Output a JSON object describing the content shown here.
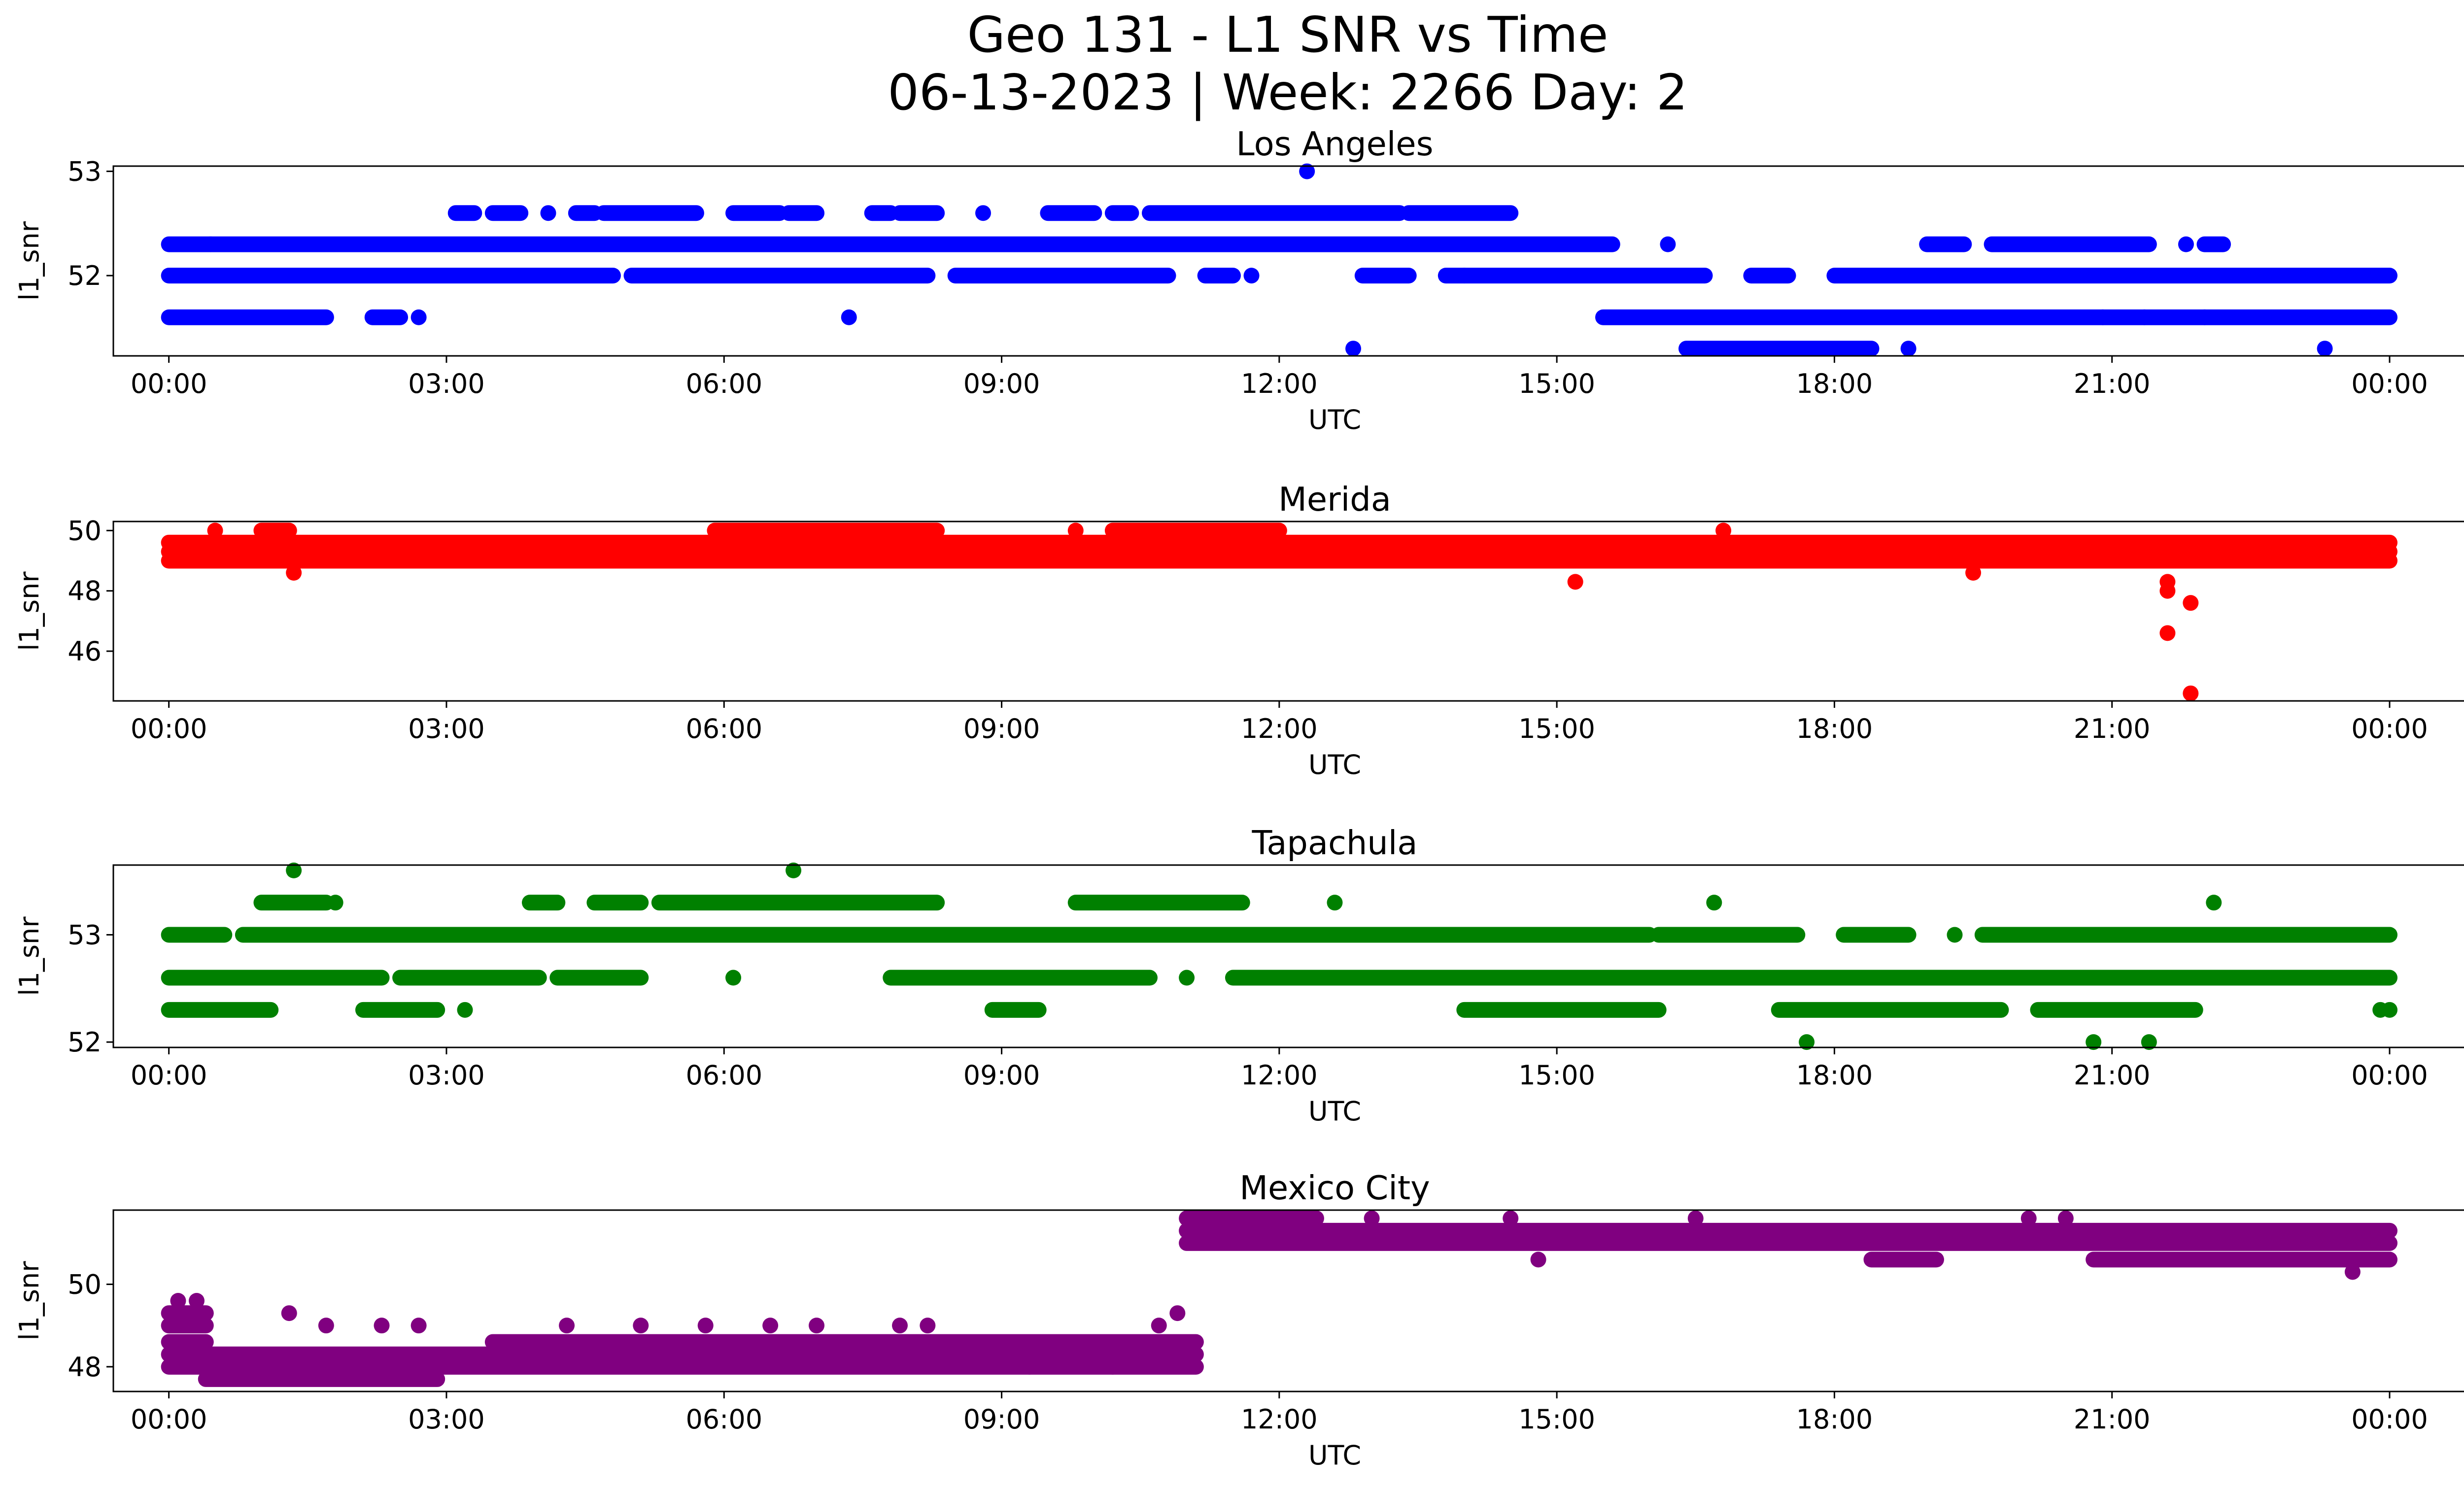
{
  "chart_data": {
    "type": "scatter",
    "title_line1": "Geo 131 - L1 SNR vs Time",
    "title_line2": "06-13-2023 | Week: 2266 Day: 2",
    "xlabel": "UTC",
    "ylabel": "l1_snr",
    "x_ticks": [
      "00:00",
      "03:00",
      "06:00",
      "09:00",
      "12:00",
      "15:00",
      "18:00",
      "21:00",
      "00:00"
    ],
    "x_tick_hours": [
      0,
      3,
      6,
      9,
      12,
      15,
      18,
      21,
      24
    ],
    "xlim": [
      -0.6,
      25.8
    ],
    "grid": false,
    "panels": [
      {
        "subtitle": "Los Angeles",
        "color": "#0000ff",
        "ylim": [
          51.23,
          53.05
        ],
        "y_ticks": [
          52,
          53
        ],
        "levels": [
          51.3,
          51.6,
          52.0,
          52.3,
          52.6,
          53.0
        ],
        "segments": [
          {
            "from": 0,
            "to": 15.6,
            "level": 52.3
          },
          {
            "from": 0,
            "to": 4.8,
            "level": 52.0
          },
          {
            "from": 5.0,
            "to": 8.2,
            "level": 52.0
          },
          {
            "from": 8.5,
            "to": 10.8,
            "level": 52.0
          },
          {
            "from": 11.2,
            "to": 11.5,
            "level": 52.0
          },
          {
            "from": 12.9,
            "to": 13.4,
            "level": 52.0
          },
          {
            "from": 13.8,
            "to": 16.6,
            "level": 52.0
          },
          {
            "from": 17.1,
            "to": 17.5,
            "level": 52.0
          },
          {
            "from": 18.0,
            "to": 24.0,
            "level": 52.0
          },
          {
            "from": 0,
            "to": 1.7,
            "level": 51.6
          },
          {
            "from": 2.2,
            "to": 2.5,
            "level": 51.6
          },
          {
            "from": 15.5,
            "to": 24.0,
            "level": 51.6
          },
          {
            "from": 16.4,
            "to": 18.4,
            "level": 51.3
          },
          {
            "from": 3.1,
            "to": 3.3,
            "level": 52.6
          },
          {
            "from": 3.5,
            "to": 3.8,
            "level": 52.6
          },
          {
            "from": 4.4,
            "to": 4.6,
            "level": 52.6
          },
          {
            "from": 4.7,
            "to": 5.7,
            "level": 52.6
          },
          {
            "from": 6.1,
            "to": 6.6,
            "level": 52.6
          },
          {
            "from": 6.7,
            "to": 7.0,
            "level": 52.6
          },
          {
            "from": 7.6,
            "to": 7.8,
            "level": 52.6
          },
          {
            "from": 7.9,
            "to": 8.3,
            "level": 52.6
          },
          {
            "from": 9.5,
            "to": 10.0,
            "level": 52.6
          },
          {
            "from": 10.2,
            "to": 10.4,
            "level": 52.6
          },
          {
            "from": 10.6,
            "to": 13.3,
            "level": 52.6
          },
          {
            "from": 13.4,
            "to": 14.5,
            "level": 52.6
          },
          {
            "from": 19.0,
            "to": 19.4,
            "level": 52.3
          },
          {
            "from": 19.7,
            "to": 21.4,
            "level": 52.3
          },
          {
            "from": 22.0,
            "to": 22.2,
            "level": 52.3
          }
        ],
        "points": [
          {
            "x": 0.45,
            "y": 52.3
          },
          {
            "x": 4.1,
            "y": 52.6
          },
          {
            "x": 8.8,
            "y": 52.6
          },
          {
            "x": 12.3,
            "y": 53.0
          },
          {
            "x": 12.8,
            "y": 51.3
          },
          {
            "x": 7.35,
            "y": 51.6
          },
          {
            "x": 2.7,
            "y": 51.6
          },
          {
            "x": 16.2,
            "y": 52.3
          },
          {
            "x": 21.35,
            "y": 51.6
          },
          {
            "x": 20.9,
            "y": 51.6
          },
          {
            "x": 22.0,
            "y": 51.6
          },
          {
            "x": 23.3,
            "y": 51.3
          },
          {
            "x": 21.8,
            "y": 52.3
          },
          {
            "x": 11.7,
            "y": 52.0
          },
          {
            "x": 14.0,
            "y": 52.0
          },
          {
            "x": 18.8,
            "y": 51.3
          }
        ]
      },
      {
        "subtitle": "Merida",
        "color": "#ff0000",
        "ylim": [
          44.35,
          50.3
        ],
        "y_ticks": [
          46,
          48,
          50
        ],
        "levels": [
          49.0,
          49.3,
          49.6,
          50.0
        ],
        "segments": [
          {
            "from": 0,
            "to": 24.0,
            "level": 49.3
          },
          {
            "from": 0,
            "to": 24.0,
            "level": 49.6
          },
          {
            "from": 0,
            "to": 24.0,
            "level": 49.0
          },
          {
            "from": 5.9,
            "to": 8.3,
            "level": 50.0
          },
          {
            "from": 10.2,
            "to": 12.0,
            "level": 50.0
          },
          {
            "from": 1.0,
            "to": 1.3,
            "level": 50.0
          }
        ],
        "points": [
          {
            "x": 1.35,
            "y": 48.6
          },
          {
            "x": 15.2,
            "y": 48.3
          },
          {
            "x": 19.5,
            "y": 48.6
          },
          {
            "x": 21.6,
            "y": 48.3
          },
          {
            "x": 21.6,
            "y": 48.0
          },
          {
            "x": 21.6,
            "y": 46.6
          },
          {
            "x": 21.85,
            "y": 47.6
          },
          {
            "x": 21.85,
            "y": 44.6
          },
          {
            "x": 0.5,
            "y": 50.0
          },
          {
            "x": 9.8,
            "y": 50.0
          },
          {
            "x": 12.9,
            "y": 49.0
          },
          {
            "x": 16.8,
            "y": 50.0
          }
        ]
      },
      {
        "subtitle": "Tapachula",
        "color": "#008000",
        "ylim": [
          51.95,
          53.65
        ],
        "y_ticks": [
          52,
          53
        ],
        "levels": [
          52.0,
          52.3,
          52.6,
          53.0,
          53.3,
          53.6
        ],
        "segments": [
          {
            "from": 0,
            "to": 0.6,
            "level": 53.0
          },
          {
            "from": 0.8,
            "to": 16.0,
            "level": 53.0
          },
          {
            "from": 16.1,
            "to": 17.6,
            "level": 53.0
          },
          {
            "from": 18.1,
            "to": 18.8,
            "level": 53.0
          },
          {
            "from": 19.6,
            "to": 24.0,
            "level": 53.0
          },
          {
            "from": 0,
            "to": 2.3,
            "level": 52.6
          },
          {
            "from": 2.5,
            "to": 4.0,
            "level": 52.6
          },
          {
            "from": 4.2,
            "to": 5.1,
            "level": 52.6
          },
          {
            "from": 7.8,
            "to": 10.6,
            "level": 52.6
          },
          {
            "from": 11.5,
            "to": 24.0,
            "level": 52.6
          },
          {
            "from": 0,
            "to": 1.1,
            "level": 52.3
          },
          {
            "from": 2.1,
            "to": 2.9,
            "level": 52.3
          },
          {
            "from": 8.9,
            "to": 9.4,
            "level": 52.3
          },
          {
            "from": 14.0,
            "to": 16.1,
            "level": 52.3
          },
          {
            "from": 17.4,
            "to": 19.8,
            "level": 52.3
          },
          {
            "from": 20.2,
            "to": 21.9,
            "level": 52.3
          },
          {
            "from": 1.0,
            "to": 1.7,
            "level": 53.3
          },
          {
            "from": 3.9,
            "to": 4.2,
            "level": 53.3
          },
          {
            "from": 4.6,
            "to": 5.1,
            "level": 53.3
          },
          {
            "from": 5.3,
            "to": 8.3,
            "level": 53.3
          },
          {
            "from": 9.8,
            "to": 11.6,
            "level": 53.3
          }
        ],
        "points": [
          {
            "x": 1.35,
            "y": 53.6
          },
          {
            "x": 6.75,
            "y": 53.6
          },
          {
            "x": 12.6,
            "y": 53.3
          },
          {
            "x": 16.7,
            "y": 53.3
          },
          {
            "x": 22.1,
            "y": 53.3
          },
          {
            "x": 17.7,
            "y": 52.0
          },
          {
            "x": 20.8,
            "y": 52.0
          },
          {
            "x": 21.4,
            "y": 52.0
          },
          {
            "x": 3.2,
            "y": 52.3
          },
          {
            "x": 6.1,
            "y": 52.6
          },
          {
            "x": 11.0,
            "y": 52.6
          },
          {
            "x": 23.9,
            "y": 52.3
          },
          {
            "x": 24.0,
            "y": 52.3
          },
          {
            "x": 19.3,
            "y": 53.0
          },
          {
            "x": 1.8,
            "y": 53.3
          },
          {
            "x": 2.1,
            "y": 52.6
          }
        ]
      },
      {
        "subtitle": "Mexico City",
        "color": "#800080",
        "ylim": [
          47.4,
          51.8
        ],
        "y_ticks": [
          48,
          50
        ],
        "levels": [
          47.7,
          48.0,
          48.3,
          48.6,
          49.0,
          49.3,
          49.6,
          50.6,
          51.0,
          51.3,
          51.6
        ],
        "segments": [
          {
            "from": 0,
            "to": 11.1,
            "level": 48.3
          },
          {
            "from": 0,
            "to": 11.1,
            "level": 48.0
          },
          {
            "from": 3.5,
            "to": 11.1,
            "level": 48.6
          },
          {
            "from": 0,
            "to": 0.4,
            "level": 48.6
          },
          {
            "from": 0,
            "to": 0.4,
            "level": 49.0
          },
          {
            "from": 0,
            "to": 0.4,
            "level": 49.3
          },
          {
            "from": 0.4,
            "to": 2.9,
            "level": 47.7
          },
          {
            "from": 11.0,
            "to": 24.0,
            "level": 51.3
          },
          {
            "from": 11.0,
            "to": 24.0,
            "level": 51.0
          },
          {
            "from": 11.0,
            "to": 12.4,
            "level": 51.6
          },
          {
            "from": 18.4,
            "to": 19.1,
            "level": 50.6
          },
          {
            "from": 20.8,
            "to": 24.0,
            "level": 50.6
          }
        ],
        "points": [
          {
            "x": 0.1,
            "y": 49.6
          },
          {
            "x": 0.3,
            "y": 49.6
          },
          {
            "x": 1.3,
            "y": 49.3
          },
          {
            "x": 1.7,
            "y": 49.0
          },
          {
            "x": 2.3,
            "y": 49.0
          },
          {
            "x": 2.7,
            "y": 49.0
          },
          {
            "x": 4.3,
            "y": 49.0
          },
          {
            "x": 5.1,
            "y": 49.0
          },
          {
            "x": 5.8,
            "y": 49.0
          },
          {
            "x": 6.5,
            "y": 49.0
          },
          {
            "x": 7.0,
            "y": 49.0
          },
          {
            "x": 7.9,
            "y": 49.0
          },
          {
            "x": 8.2,
            "y": 49.0
          },
          {
            "x": 10.9,
            "y": 49.3
          },
          {
            "x": 10.7,
            "y": 49.0
          },
          {
            "x": 9.3,
            "y": 48.0
          },
          {
            "x": 10.2,
            "y": 48.0
          },
          {
            "x": 14.8,
            "y": 50.6
          },
          {
            "x": 23.6,
            "y": 50.3
          },
          {
            "x": 13.0,
            "y": 51.6
          },
          {
            "x": 14.5,
            "y": 51.6
          },
          {
            "x": 16.5,
            "y": 51.6
          },
          {
            "x": 20.1,
            "y": 51.6
          },
          {
            "x": 20.5,
            "y": 51.6
          }
        ]
      }
    ]
  }
}
